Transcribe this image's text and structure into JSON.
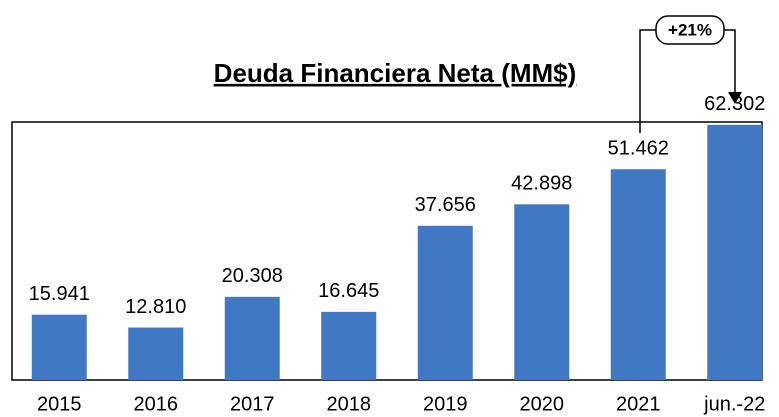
{
  "chart_data": {
    "type": "bar",
    "title": "Deuda Financiera Neta (MM$)",
    "categories": [
      "2015",
      "2016",
      "2017",
      "2018",
      "2019",
      "2020",
      "2021",
      "jun.-22"
    ],
    "values": [
      15941,
      12810,
      20308,
      16645,
      37656,
      42898,
      51462,
      62302
    ],
    "value_labels": [
      "15.941",
      "12.810",
      "20.308",
      "16.645",
      "37.656",
      "42.898",
      "51.462",
      "62.302"
    ],
    "color": "#4178c4",
    "ylim": [
      0,
      63000
    ],
    "annotation": "+21%"
  }
}
